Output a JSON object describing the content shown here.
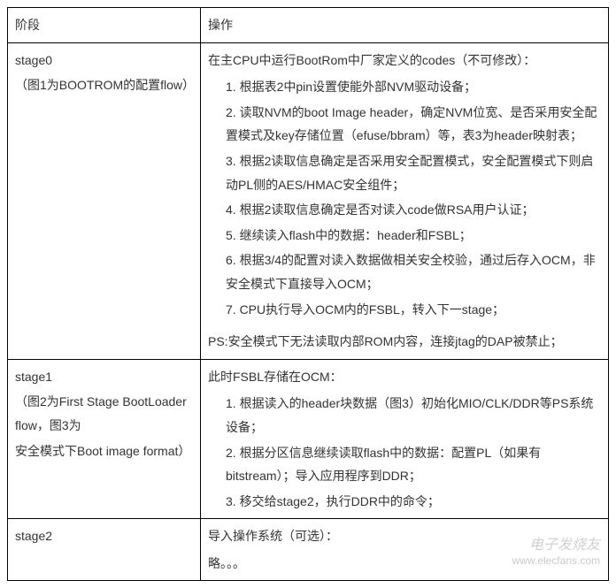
{
  "header": {
    "col1": "阶段",
    "col2": "操作"
  },
  "stage0": {
    "title": "stage0",
    "sub": "（图1为BOOTROM的配置flow）",
    "intro": "在主CPU中运行BootRom中厂家定义的codes（不可修改）：",
    "items": [
      "1. 根据表2中pin设置使能外部NVM驱动设备；",
      "2. 读取NVM的boot Image header，确定NVM位宽、是否采用安全配置模式及key存储位置（efuse/bbram）等，表3为header映射表；",
      "3. 根据2读取信息确定是否采用安全配置模式，安全配置模式下则启动PL侧的AES/HMAC安全组件；",
      "4. 根据2读取信息确定是否对读入code做RSA用户认证；",
      "5. 继续读入flash中的数据：header和FSBL；",
      "6. 根据3/4的配置对读入数据做相关安全校验，通过后存入OCM，非安全模式下直接导入OCM；",
      "7. CPU执行导入OCM内的FSBL，转入下一stage；"
    ],
    "ps": "PS:安全模式下无法读取内部ROM内容，连接jtag的DAP被禁止；"
  },
  "stage1": {
    "title": "stage1",
    "sub1": "（图2为First Stage BootLoader flow，图3为",
    "sub2": "安全模式下Boot image format）",
    "intro": "此时FSBL存储在OCM：",
    "items": [
      "1. 根据读入的header块数据（图3）初始化MIO/CLK/DDR等PS系统设备；",
      "2. 根据分区信息继续读取flash中的数据：配置PL（如果有bitstream）；导入应用程序到DDR；",
      "3. 移交给stage2，执行DDR中的命令；"
    ]
  },
  "stage2": {
    "title": "stage2",
    "intro": "导入操作系统（可选）：",
    "body": "略。。。"
  },
  "watermark": {
    "logo": "电子发烧友",
    "url": "www.elecfans.com"
  }
}
